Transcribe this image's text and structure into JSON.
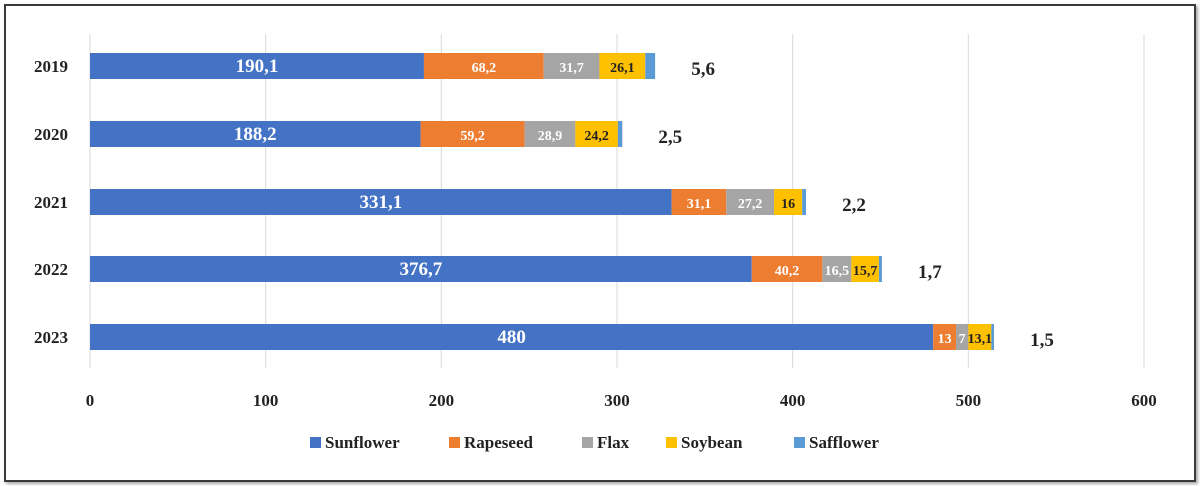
{
  "chart_data": {
    "type": "bar",
    "orientation": "horizontal",
    "stacked": true,
    "title": "",
    "xlabel": "",
    "ylabel": "",
    "xlim": [
      0,
      600
    ],
    "xticks": [
      "0",
      "100",
      "200",
      "300",
      "400",
      "500",
      "600"
    ],
    "grid": true,
    "legend_position": "bottom",
    "categories": [
      "2019",
      "2020",
      "2021",
      "2022",
      "2023"
    ],
    "series": [
      {
        "name": "Sunflower",
        "color": "#4472C4",
        "values": [
          190.1,
          188.2,
          331.1,
          376.7,
          480
        ],
        "labels": [
          "190,1",
          "188,2",
          "331,1",
          "376,7",
          "480"
        ]
      },
      {
        "name": "Rapeseed",
        "color": "#ED7D31",
        "values": [
          68.2,
          59.2,
          31.1,
          40.2,
          13
        ],
        "labels": [
          "68,2",
          "59,2",
          "31,1",
          "40,2",
          "13"
        ]
      },
      {
        "name": "Flax",
        "color": "#A5A5A5",
        "values": [
          31.7,
          28.9,
          27.2,
          16.5,
          7
        ],
        "labels": [
          "31,7",
          "28,9",
          "27,2",
          "16,5",
          "7"
        ]
      },
      {
        "name": "Soybean",
        "color": "#FFC000",
        "values": [
          26.1,
          24.2,
          16,
          15.7,
          13.1
        ],
        "labels": [
          "26,1",
          "24,2",
          "16",
          "15,7",
          "13,1"
        ]
      },
      {
        "name": "Safflower",
        "color": "#5B9BD5",
        "values": [
          5.6,
          2.5,
          2.2,
          1.7,
          1.5
        ],
        "labels": [
          "5,6",
          "2,5",
          "2,2",
          "1,7",
          "1,5"
        ]
      }
    ]
  }
}
